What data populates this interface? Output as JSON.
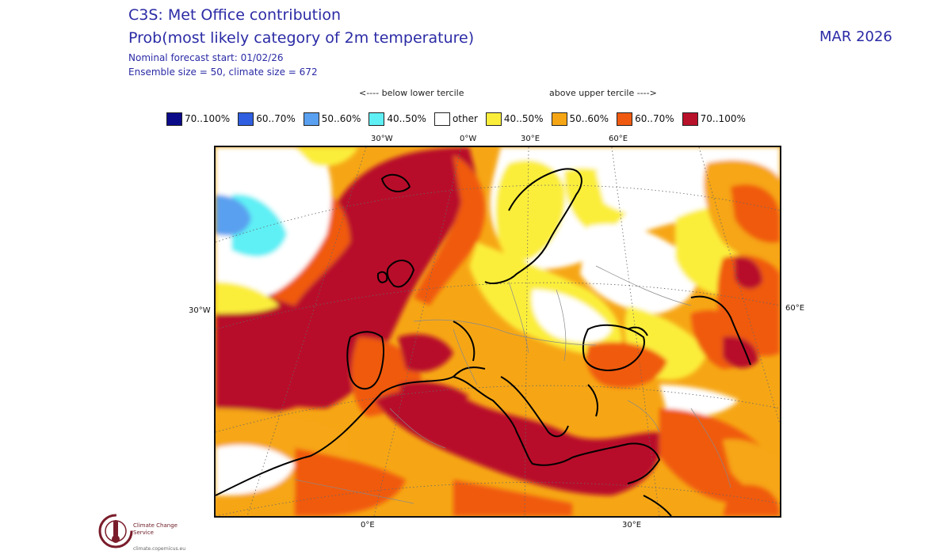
{
  "header": {
    "title": "C3S: Met Office contribution",
    "subtitle": "Prob(most likely category of 2m temperature)",
    "forecast_start": "Nominal forecast start: 01/02/26",
    "ensemble": "Ensemble size = 50, climate size = 672",
    "month": "MAR 2026"
  },
  "tercile_labels": {
    "below": "<---- below lower tercile",
    "above": "above upper tercile ---->"
  },
  "legend": [
    {
      "label": "70..100%",
      "color": "#0b0b8a"
    },
    {
      "label": "60..70%",
      "color": "#2f5fe0"
    },
    {
      "label": "50..60%",
      "color": "#5aa0f0"
    },
    {
      "label": "40..50%",
      "color": "#5ef0f5"
    },
    {
      "label": "other",
      "color": "#ffffff"
    },
    {
      "label": "40..50%",
      "color": "#fbee3a"
    },
    {
      "label": "50..60%",
      "color": "#f6a615"
    },
    {
      "label": "60..70%",
      "color": "#f05a10"
    },
    {
      "label": "70..100%",
      "color": "#b8112a"
    }
  ],
  "axes": {
    "top": [
      "30°W",
      "0°W",
      "30°E",
      "60°E"
    ],
    "left": "30°W",
    "right": "60°E",
    "bottom": [
      "0°E",
      "30°E"
    ]
  },
  "logo": {
    "name": "Climate Change Service",
    "url": "climate.copernicus.eu"
  }
}
